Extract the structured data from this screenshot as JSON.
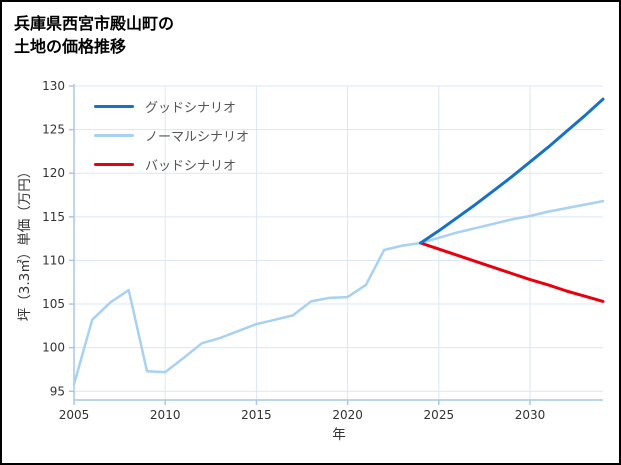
{
  "title_line1": "兵庫県西宮市殿山町の",
  "title_line2": "土地の価格推移",
  "chart_data": {
    "type": "line",
    "title": "兵庫県西宮市殿山町の土地の価格推移",
    "xlabel": "年",
    "ylabel": "坪（3.3㎡）単価（万円）",
    "xlim": [
      2005,
      2034
    ],
    "ylim": [
      94,
      130
    ],
    "xticks": [
      2005,
      2010,
      2015,
      2020,
      2025,
      2030
    ],
    "yticks": [
      95,
      100,
      105,
      110,
      115,
      120,
      125,
      130
    ],
    "grid": true,
    "legend_position": "upper-left",
    "colors": {
      "grid": "#dde6f3",
      "axis": "#a9c7e8",
      "tick_label": "#333333",
      "good": "#1772c3",
      "normal": "#a8d1f2",
      "bad": "#e8000d"
    },
    "series": [
      {
        "name": "グッドシナリオ",
        "color": "#1772c3",
        "x": [
          2024,
          2025,
          2026,
          2027,
          2028,
          2029,
          2030,
          2031,
          2032,
          2033,
          2034
        ],
        "y": [
          112.0,
          113.4,
          114.9,
          116.4,
          118.0,
          119.6,
          121.3,
          123.0,
          124.8,
          126.6,
          128.5
        ]
      },
      {
        "name": "ノーマルシナリオ",
        "color": "#a8d1f2",
        "x": [
          2005,
          2006,
          2007,
          2008,
          2009,
          2010,
          2011,
          2012,
          2013,
          2014,
          2015,
          2016,
          2017,
          2018,
          2019,
          2020,
          2021,
          2022,
          2023,
          2024,
          2025,
          2026,
          2027,
          2028,
          2029,
          2030,
          2031,
          2032,
          2033,
          2034
        ],
        "y": [
          95.8,
          103.2,
          105.2,
          106.6,
          97.3,
          97.2,
          98.8,
          100.5,
          101.1,
          101.9,
          102.7,
          103.2,
          103.7,
          105.3,
          105.7,
          105.8,
          107.2,
          111.2,
          111.7,
          112.0,
          112.6,
          113.2,
          113.7,
          114.2,
          114.7,
          115.1,
          115.6,
          116.0,
          116.4,
          116.8
        ]
      },
      {
        "name": "バッドシナリオ",
        "color": "#e8000d",
        "x": [
          2024,
          2025,
          2026,
          2027,
          2028,
          2029,
          2030,
          2031,
          2032,
          2033,
          2034
        ],
        "y": [
          112.0,
          111.3,
          110.6,
          109.9,
          109.2,
          108.5,
          107.8,
          107.2,
          106.5,
          105.9,
          105.3
        ]
      }
    ]
  }
}
